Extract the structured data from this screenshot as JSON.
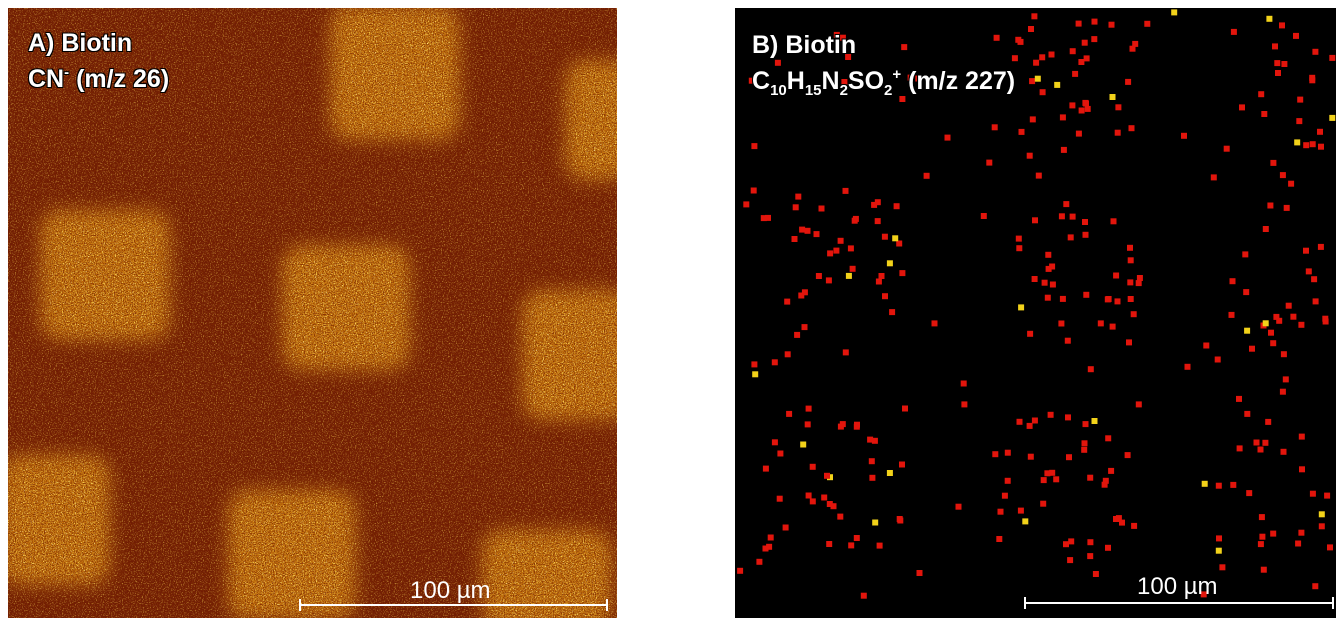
{
  "panels": [
    {
      "label": "A) Biotin",
      "ion": [
        {
          "base": "CN",
          "sup": "-"
        }
      ],
      "mz": "(m/z 26)",
      "scale_bar": "100 µm"
    },
    {
      "label": "B) Biotin",
      "ion": [
        {
          "base": "C",
          "sub": "10"
        },
        {
          "base": "H",
          "sub": "15"
        },
        {
          "base": "N",
          "sub": "2"
        },
        {
          "base": "SO",
          "sub": "2",
          "sup": "+"
        }
      ],
      "mz": "(m/z 227)",
      "scale_bar": "100 µm"
    }
  ]
}
